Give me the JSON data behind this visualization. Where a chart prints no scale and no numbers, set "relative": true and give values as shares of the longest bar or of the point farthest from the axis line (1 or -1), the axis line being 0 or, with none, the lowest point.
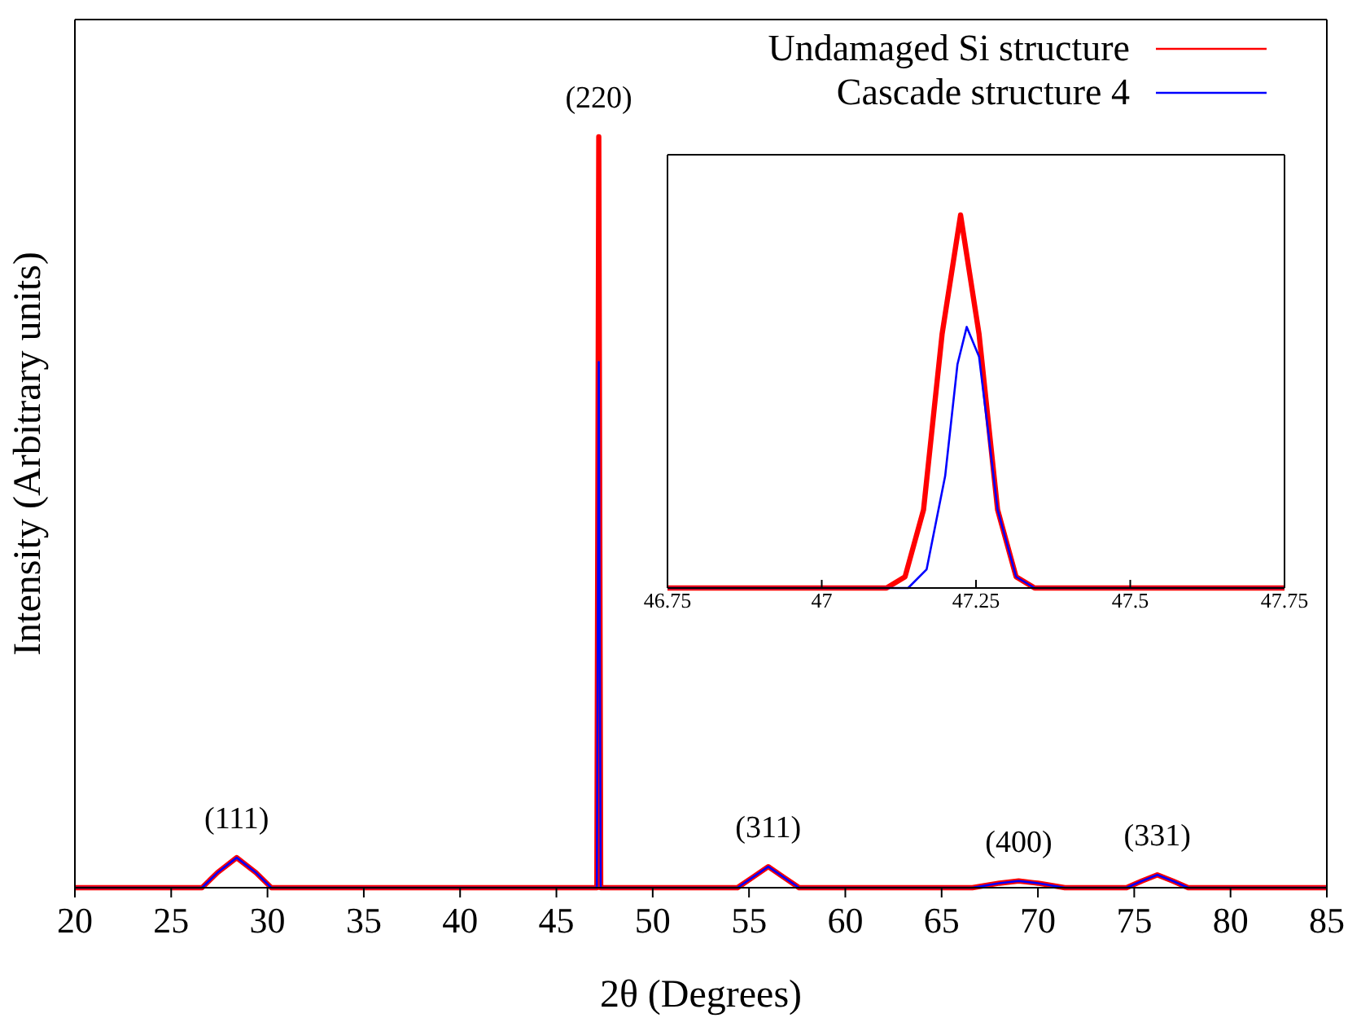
{
  "chart_data": [
    {
      "type": "line",
      "relative": true,
      "xlabel": "2θ (Degrees)",
      "ylabel": "Intensity (Arbitrary units)",
      "xlim": [
        20,
        85
      ],
      "xticks": [
        20,
        25,
        30,
        35,
        40,
        45,
        50,
        55,
        60,
        65,
        70,
        75,
        80,
        85
      ],
      "legend": "top right",
      "grid": false,
      "marker": "none",
      "line_style": "solid",
      "series": [
        {
          "name": "Undamaged Si structure",
          "color": "#ff0000",
          "x": [
            20,
            26.6,
            27.4,
            28.4,
            29.4,
            30.2,
            47.1,
            47.2,
            47.3,
            54.4,
            55.2,
            56,
            56.8,
            57.6,
            66.6,
            68,
            69,
            70,
            71.4,
            74.6,
            75.4,
            76.2,
            77,
            77.8,
            85
          ],
          "values": [
            0,
            0,
            0.02,
            0.04,
            0.02,
            0,
            0,
            1,
            0,
            0,
            0.014,
            0.028,
            0.014,
            0,
            0,
            0.006,
            0.009,
            0.006,
            0,
            0,
            0.009,
            0.017,
            0.009,
            0,
            0
          ]
        },
        {
          "name": "Cascade structure 4",
          "color": "#0000ff",
          "x": [
            20,
            26.6,
            27.4,
            28.4,
            29.4,
            30.2,
            47.1,
            47.2,
            47.3,
            54.4,
            55.2,
            56,
            56.8,
            57.6,
            66.6,
            68,
            69,
            70,
            71.4,
            74.6,
            75.4,
            76.2,
            77,
            77.8,
            85
          ],
          "values": [
            0,
            0,
            0.02,
            0.04,
            0.02,
            0,
            0,
            0.7,
            0,
            0,
            0.014,
            0.028,
            0.014,
            0,
            0,
            0.006,
            0.009,
            0.006,
            0,
            0,
            0.009,
            0.017,
            0.009,
            0,
            0
          ]
        }
      ],
      "annotations": [
        {
          "text": "(111)",
          "x": 28.4,
          "y": 0.04
        },
        {
          "text": "(220)",
          "x": 47.2,
          "y": 1
        },
        {
          "text": "(311)",
          "x": 56,
          "y": 0.028
        },
        {
          "text": "(400)",
          "x": 69,
          "y": 0.009
        },
        {
          "text": "(331)",
          "x": 76.2,
          "y": 0.017
        }
      ]
    },
    {
      "type": "line",
      "relative": true,
      "xlim": [
        46.75,
        47.75
      ],
      "xticks": [
        46.75,
        47,
        47.25,
        47.5,
        47.75
      ],
      "grid": false,
      "marker": "none",
      "line_style": "solid",
      "series": [
        {
          "color": "#ff0000",
          "x": [
            46.75,
            47.105,
            47.135,
            47.165,
            47.195,
            47.225,
            47.255,
            47.285,
            47.315,
            47.345,
            47.75
          ],
          "values": [
            0,
            0,
            0.03,
            0.21,
            0.68,
            1,
            0.68,
            0.21,
            0.03,
            0,
            0
          ]
        },
        {
          "color": "#0000ff",
          "x": [
            46.75,
            47.14,
            47.17,
            47.2,
            47.22,
            47.235,
            47.255,
            47.285,
            47.315,
            47.345,
            47.75
          ],
          "values": [
            0,
            0,
            0.05,
            0.3,
            0.6,
            0.7,
            0.62,
            0.21,
            0.03,
            0,
            0
          ]
        }
      ]
    }
  ]
}
